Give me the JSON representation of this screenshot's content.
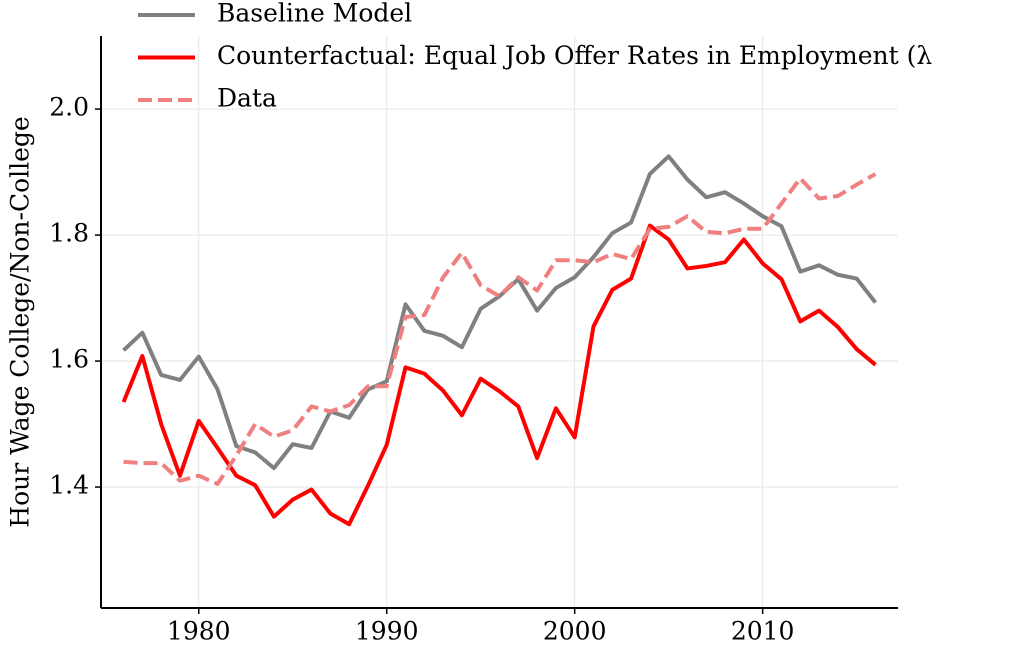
{
  "chart_data": {
    "type": "line",
    "x_label": "Hour Wage College/Non-College",
    "x": [
      1976,
      1977,
      1978,
      1979,
      1980,
      1981,
      1982,
      1983,
      1984,
      1985,
      1986,
      1987,
      1988,
      1989,
      1990,
      1991,
      1992,
      1993,
      1994,
      1995,
      1996,
      1997,
      1998,
      1999,
      2000,
      2001,
      2002,
      2003,
      2004,
      2005,
      2006,
      2007,
      2008,
      2009,
      2010,
      2011,
      2012,
      2013,
      2014,
      2015,
      2016
    ],
    "series": [
      {
        "name": "Baseline Model",
        "color": "#808080",
        "dash": false,
        "values": [
          1.617,
          1.645,
          1.578,
          1.57,
          1.607,
          1.555,
          1.465,
          1.455,
          1.43,
          1.468,
          1.462,
          1.52,
          1.51,
          1.555,
          1.568,
          1.69,
          1.648,
          1.64,
          1.622,
          1.683,
          1.703,
          1.73,
          1.68,
          1.716,
          1.733,
          1.765,
          1.803,
          1.82,
          1.897,
          1.925,
          1.888,
          1.86,
          1.868,
          1.85,
          1.83,
          1.814,
          1.742,
          1.752,
          1.737,
          1.731,
          1.693
        ]
      },
      {
        "name": "Counterfactual: Equal Job Offer Rates in Employment (λ",
        "color": "#ff0000",
        "dash": false,
        "values": [
          1.535,
          1.608,
          1.5,
          1.418,
          1.505,
          1.462,
          1.418,
          1.403,
          1.353,
          1.38,
          1.396,
          1.358,
          1.341,
          1.402,
          1.467,
          1.59,
          1.58,
          1.553,
          1.514,
          1.572,
          1.552,
          1.528,
          1.446,
          1.525,
          1.479,
          1.655,
          1.713,
          1.731,
          1.815,
          1.793,
          1.747,
          1.751,
          1.757,
          1.793,
          1.755,
          1.73,
          1.663,
          1.68,
          1.654,
          1.619,
          1.594
        ]
      },
      {
        "name": "Data",
        "color": "#f08080",
        "dash": true,
        "values": [
          1.44,
          1.438,
          1.438,
          1.41,
          1.418,
          1.405,
          1.45,
          1.5,
          1.48,
          1.49,
          1.528,
          1.52,
          1.53,
          1.56,
          1.56,
          1.67,
          1.673,
          1.733,
          1.772,
          1.72,
          1.703,
          1.733,
          1.712,
          1.76,
          1.76,
          1.757,
          1.77,
          1.762,
          1.81,
          1.813,
          1.83,
          1.805,
          1.803,
          1.81,
          1.81,
          1.85,
          1.89,
          1.858,
          1.862,
          1.88,
          1.897
        ]
      }
    ],
    "xlim": [
      1974.8,
      2017.2
    ],
    "ylim": [
      1.208,
      2.116
    ],
    "xticks": [
      1980,
      1990,
      2000,
      2010
    ],
    "yticks": [
      1.4,
      1.6,
      1.8,
      {
        "value": 2,
        "label": "2.0"
      }
    ],
    "grid": true,
    "legend": "upper left"
  }
}
